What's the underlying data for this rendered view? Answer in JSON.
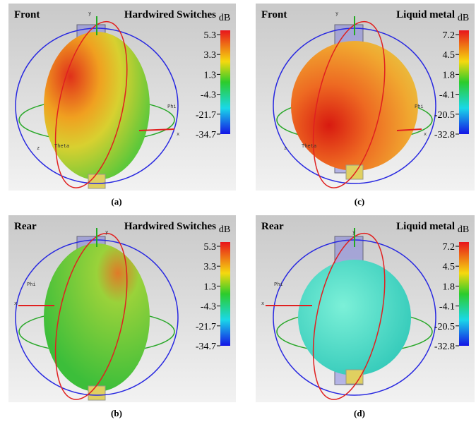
{
  "panels": [
    {
      "view": "Front",
      "title": "Hardwired Switches",
      "unit": "dB",
      "ticks": [
        5.3,
        3.3,
        1.3,
        -4.3,
        -21.7,
        -34.7
      ],
      "caption": "(a)",
      "axes": [
        "y",
        "x",
        "z",
        "Phi",
        "Theta"
      ]
    },
    {
      "view": "Front",
      "title": "Liquid metal",
      "unit": "dB",
      "ticks": [
        7.2,
        4.5,
        1.8,
        -4.1,
        -20.5,
        -32.8
      ],
      "caption": "(c)",
      "axes": [
        "y",
        "x",
        "z",
        "Phi",
        "Theta"
      ]
    },
    {
      "view": "Rear",
      "title": "Hardwired Switches",
      "unit": "dB",
      "ticks": [
        5.3,
        3.3,
        1.3,
        -4.3,
        -21.7,
        -34.7
      ],
      "caption": "(b)",
      "axes": [
        "y",
        "x",
        "Phi"
      ]
    },
    {
      "view": "Rear",
      "title": "Liquid metal",
      "unit": "dB",
      "ticks": [
        7.2,
        4.5,
        1.8,
        -4.1,
        -20.5,
        -32.8
      ],
      "caption": "(d)",
      "axes": [
        "y",
        "x",
        "Phi"
      ]
    }
  ]
}
